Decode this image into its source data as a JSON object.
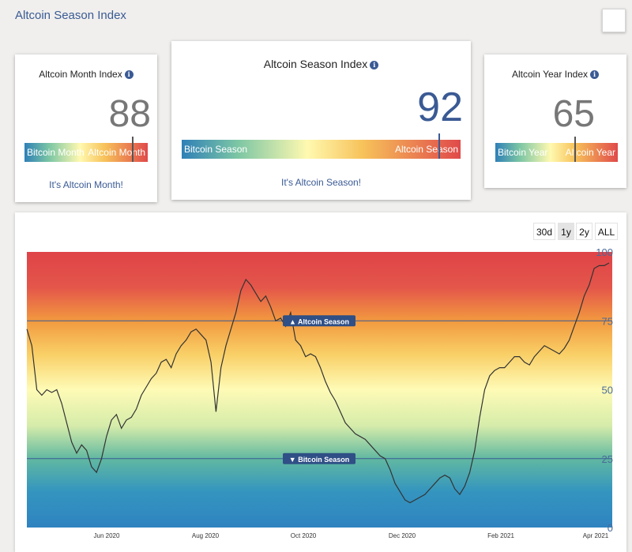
{
  "page": {
    "title": "Altcoin Season Index"
  },
  "cards": {
    "month": {
      "title": "Altcoin Month Index",
      "value": "88",
      "bar_left": "Bitcoin Month",
      "bar_right": "Altcoin Month",
      "status": "It's Altcoin Month!"
    },
    "season": {
      "title": "Altcoin Season Index",
      "value": "92",
      "bar_left": "Bitcoin Season",
      "bar_right": "Altcoin Season",
      "status": "It's Altcoin Season!"
    },
    "year": {
      "title": "Altcoin Year Index",
      "value": "65",
      "bar_left": "Bitcoin Year",
      "bar_right": "Altcoin Year"
    }
  },
  "info_glyph": "i",
  "ranges": {
    "r30d": "30d",
    "r1y": "1y",
    "r2y": "2y",
    "rall": "ALL",
    "active": "1y"
  },
  "colors": {
    "accent": "#3a5a94",
    "line": "#333333"
  },
  "chart_data": {
    "type": "line",
    "ylim": [
      0,
      100
    ],
    "y_ticks": [
      "0",
      "25",
      "50",
      "75",
      "100"
    ],
    "x_ticks": [
      "Jun 2020",
      "Aug 2020",
      "Oct 2020",
      "Dec 2020",
      "Feb 2021",
      "Apr 2021"
    ],
    "threshold_labels": {
      "upper": "▲ Altcoin Season",
      "lower": "▼ Bitcoin Season"
    },
    "thresholds": {
      "upper": 75,
      "lower": 25
    },
    "series": [
      {
        "values": [
          72,
          66,
          50,
          48,
          50,
          49,
          50,
          45,
          38,
          31,
          27,
          30,
          28,
          22,
          20,
          25,
          33,
          39,
          41,
          36,
          39,
          40,
          43,
          48,
          51,
          54,
          56,
          60,
          61,
          58,
          63,
          66,
          68,
          71,
          72,
          70,
          68,
          60,
          42,
          58,
          66,
          72,
          78,
          86,
          90,
          88,
          85,
          82,
          84,
          80,
          75,
          76,
          73,
          78,
          68,
          66,
          62,
          63,
          62,
          58,
          53,
          49,
          46,
          42,
          38,
          36,
          34,
          33,
          32,
          30,
          28,
          26,
          25,
          21,
          16,
          13,
          10,
          9,
          10,
          11,
          12,
          14,
          16,
          18,
          19,
          18,
          14,
          12,
          15,
          20,
          28,
          40,
          50,
          55,
          57,
          58,
          58,
          60,
          62,
          62,
          60,
          59,
          62,
          64,
          66,
          65,
          64,
          63,
          65,
          68,
          73,
          78,
          84,
          88,
          94,
          95,
          95,
          96
        ]
      }
    ]
  }
}
